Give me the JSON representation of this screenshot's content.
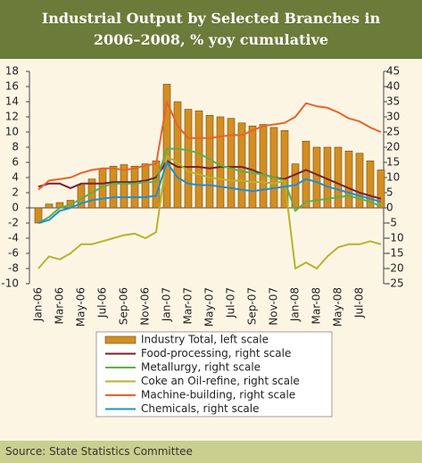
{
  "chart_data": {
    "type": "combo",
    "title": "Industrial Output by Selected Branches in 2006–2008, % yoy cumulative",
    "source": "Source: State Statistics Committee",
    "categories": [
      "Jan-06",
      null,
      "Mar-06",
      null,
      "May-06",
      null,
      "Jul-06",
      null,
      "Sep-06",
      null,
      "Nov-06",
      null,
      "Jan-07",
      null,
      "Mar-07",
      null,
      "May-07",
      null,
      "Jul-07",
      null,
      "Sep-07",
      null,
      "Nov-07",
      null,
      "Jan-08",
      null,
      "Mar-08",
      null,
      "May-08",
      null,
      "Jul-08",
      null,
      null
    ],
    "ylim": [
      -10,
      18
    ],
    "yticks": [
      18,
      16,
      14,
      12,
      10,
      8,
      6,
      4,
      2,
      0,
      -2,
      -4,
      -6,
      -8,
      -10
    ],
    "y2lim": [
      -25,
      45
    ],
    "y2ticks": [
      45,
      40,
      35,
      30,
      25,
      20,
      15,
      10,
      5,
      0,
      -5,
      -10,
      -15,
      -20,
      -25
    ],
    "grid": false,
    "series": [
      {
        "name": "Industry Total, left scale",
        "type": "bar",
        "color": "#d38e22",
        "axis": "y",
        "values": [
          -2,
          0.5,
          0.7,
          1,
          3,
          3.8,
          5.2,
          5.5,
          5.7,
          5.5,
          5.8,
          6.2,
          16.3,
          14,
          13,
          12.8,
          12.2,
          12,
          11.8,
          11.2,
          10.8,
          11,
          10.6,
          10.2,
          5.8,
          8.8,
          8,
          8,
          8,
          7.5,
          7.2,
          6.2,
          5
        ]
      },
      {
        "name": "Food-processing, right scale",
        "type": "line",
        "color": "#7a1f2b",
        "axis": "y2",
        "values": [
          7,
          8,
          8,
          6.5,
          8,
          8,
          8,
          8.5,
          8.5,
          8.5,
          9,
          10,
          15.5,
          13.5,
          13.5,
          13.5,
          13,
          13.5,
          13.5,
          13.5,
          12.5,
          11,
          10,
          9.5,
          11,
          12.5,
          11,
          9.5,
          8,
          6.5,
          5,
          4,
          3
        ]
      },
      {
        "name": "Metallurgy, right scale",
        "type": "line",
        "color": "#5cb04a",
        "axis": "y2",
        "values": [
          -5,
          -3,
          0,
          1,
          3,
          5,
          7,
          8,
          8,
          8,
          8.5,
          8.5,
          19.5,
          19.5,
          19,
          18,
          16,
          14,
          13,
          12,
          11.5,
          11,
          10,
          9,
          -1,
          2,
          2.5,
          3,
          3.5,
          4,
          3,
          2,
          0.5
        ]
      },
      {
        "name": "Coke an Oil-refine, right scale",
        "type": "line",
        "color": "#b7b22c",
        "axis": "y2",
        "values": [
          -20,
          -16,
          -17,
          -15,
          -12,
          -12,
          -11,
          -10,
          -9,
          -8.5,
          -10,
          -8,
          17,
          15,
          12,
          11,
          10,
          9.5,
          9,
          9,
          8.5,
          8.5,
          8,
          9,
          -20,
          -18,
          -20,
          -16,
          -13,
          -12,
          -12,
          -11,
          -12
        ]
      },
      {
        "name": "Machine-building, right scale",
        "type": "line",
        "color": "#e8632a",
        "axis": "y2",
        "values": [
          6,
          9,
          9.5,
          10,
          11.5,
          12.5,
          13,
          13,
          12.5,
          13,
          14,
          14.5,
          35,
          27,
          23,
          23,
          23,
          23.5,
          24,
          24,
          25.5,
          27,
          27.5,
          28,
          30,
          34.5,
          33.5,
          33,
          31.5,
          29.5,
          28.5,
          26.5,
          25
        ]
      },
      {
        "name": "Chemicals, right scale",
        "type": "line",
        "color": "#1e8fcf",
        "axis": "y2",
        "values": [
          -5,
          -4,
          -1,
          0,
          1.5,
          2.5,
          3,
          3.5,
          3.5,
          3.5,
          3.5,
          4,
          15,
          10,
          8,
          7.5,
          7.5,
          7,
          6.5,
          6,
          5.5,
          6,
          6.5,
          7,
          7.5,
          9.5,
          8.5,
          7,
          6,
          5,
          4,
          3,
          2
        ]
      }
    ]
  }
}
